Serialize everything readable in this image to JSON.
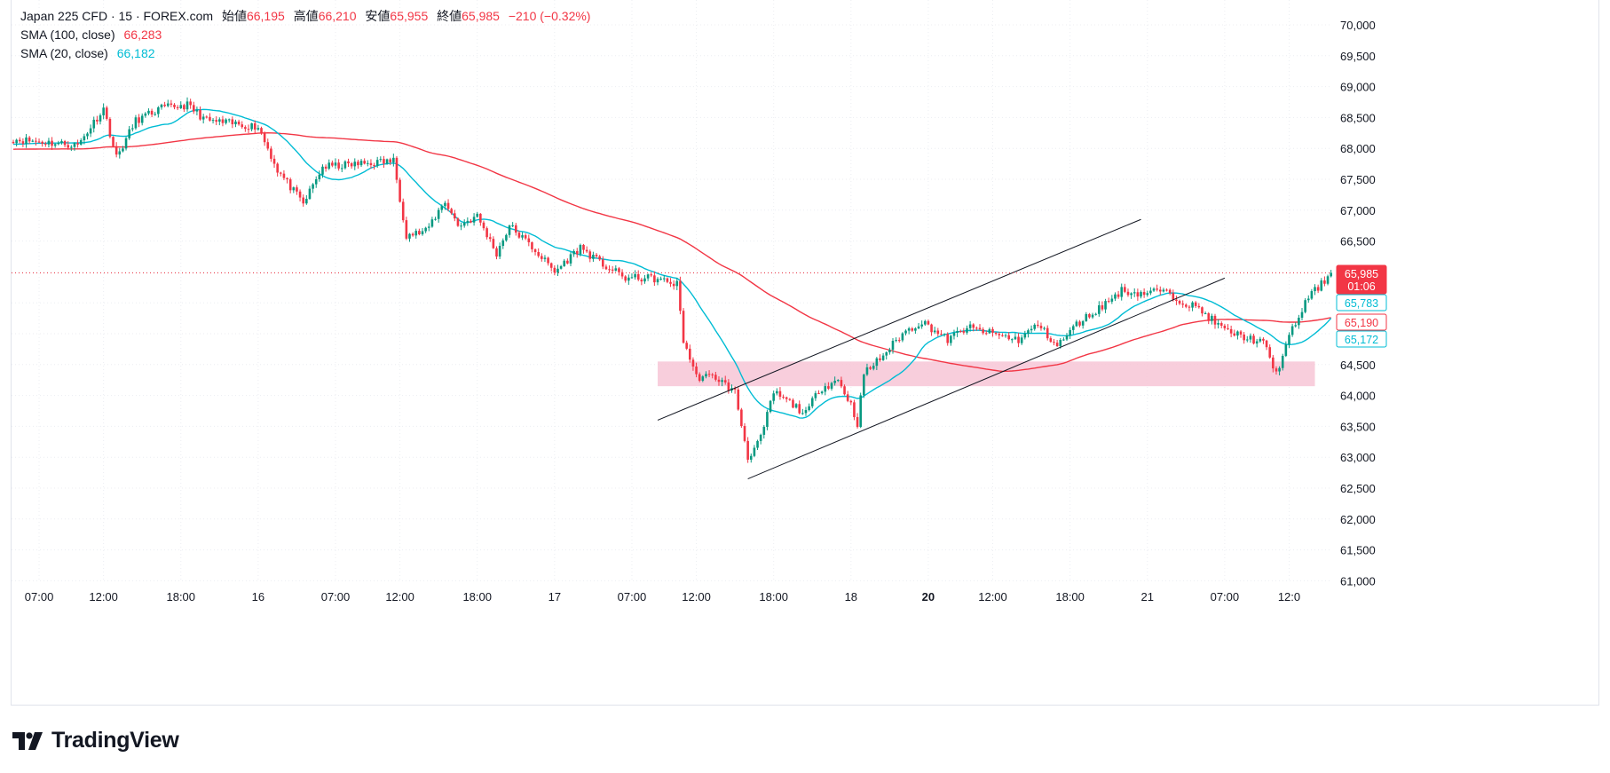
{
  "legend": {
    "symbol": "Japan 225 CFD · 15 · FOREX.com",
    "open_label": "始値",
    "open": "66,195",
    "high_label": "高値",
    "high": "66,210",
    "low_label": "安値",
    "low": "65,955",
    "close_label": "終値",
    "close": "65,985",
    "change": "−210 (−0.32%)",
    "sma100_label": "SMA (100, close)",
    "sma100_value": "66,283",
    "sma20_label": "SMA (20, close)",
    "sma20_value": "66,182"
  },
  "price_tags": {
    "last": "65,985",
    "countdown": "01:06",
    "teal_upper": "65,783",
    "red": "65,190",
    "teal_lower": "65,172"
  },
  "brand": {
    "name": "TradingView",
    "icon": "tradingview-logo-icon"
  },
  "colors": {
    "up": "#089981",
    "down": "#f23645",
    "sma100": "#f23645",
    "sma20": "#00bcd4",
    "zone": "#f7c6d6"
  },
  "chart_data": {
    "type": "candlestick",
    "interval": "15",
    "ylim": [
      61000,
      70250
    ],
    "y_ticks": [
      61000,
      61500,
      62000,
      62500,
      63000,
      63500,
      64000,
      64500,
      65000,
      65500,
      66000,
      66500,
      67000,
      67500,
      68000,
      68500,
      69000,
      69500,
      70000
    ],
    "y_tick_labels": [
      "61,000",
      "61,500",
      "62,000",
      "62,500",
      "63,000",
      "63,500",
      "64,000",
      "64,500",
      "65,000",
      "65,500",
      "66,000",
      "66,500",
      "67,000",
      "67,500",
      "68,000",
      "68,500",
      "69,000",
      "69,500",
      "70,000"
    ],
    "x_ticks": [
      {
        "i": 8,
        "label": "07:00",
        "bold": false
      },
      {
        "i": 28,
        "label": "12:00",
        "bold": false
      },
      {
        "i": 52,
        "label": "18:00",
        "bold": false
      },
      {
        "i": 76,
        "label": "16",
        "bold": false
      },
      {
        "i": 100,
        "label": "07:00",
        "bold": false
      },
      {
        "i": 120,
        "label": "12:00",
        "bold": false
      },
      {
        "i": 144,
        "label": "18:00",
        "bold": false
      },
      {
        "i": 168,
        "label": "17",
        "bold": false
      },
      {
        "i": 192,
        "label": "07:00",
        "bold": false
      },
      {
        "i": 212,
        "label": "12:00",
        "bold": false
      },
      {
        "i": 236,
        "label": "18:00",
        "bold": false
      },
      {
        "i": 260,
        "label": "18",
        "bold": false
      },
      {
        "i": 284,
        "label": "20",
        "bold": true
      },
      {
        "i": 304,
        "label": "12:00",
        "bold": false
      },
      {
        "i": 328,
        "label": "18:00",
        "bold": false
      },
      {
        "i": 352,
        "label": "21",
        "bold": false
      },
      {
        "i": 376,
        "label": "07:00",
        "bold": false
      },
      {
        "i": 396,
        "label": "12:0",
        "bold": false
      }
    ],
    "bar_count": 410,
    "closes_anchor": [
      [
        0,
        68150
      ],
      [
        20,
        68050
      ],
      [
        28,
        68650
      ],
      [
        32,
        67850
      ],
      [
        38,
        68450
      ],
      [
        46,
        68650
      ],
      [
        54,
        68700
      ],
      [
        60,
        68450
      ],
      [
        76,
        68350
      ],
      [
        82,
        67650
      ],
      [
        90,
        67100
      ],
      [
        96,
        67700
      ],
      [
        108,
        67750
      ],
      [
        118,
        67800
      ],
      [
        122,
        66600
      ],
      [
        128,
        66650
      ],
      [
        134,
        67150
      ],
      [
        138,
        66750
      ],
      [
        144,
        66900
      ],
      [
        150,
        66300
      ],
      [
        154,
        66750
      ],
      [
        162,
        66350
      ],
      [
        168,
        66000
      ],
      [
        176,
        66400
      ],
      [
        182,
        66150
      ],
      [
        190,
        65900
      ],
      [
        198,
        65900
      ],
      [
        206,
        65800
      ],
      [
        208,
        64900
      ],
      [
        212,
        64300
      ],
      [
        218,
        64300
      ],
      [
        224,
        64050
      ],
      [
        228,
        63000
      ],
      [
        232,
        63300
      ],
      [
        236,
        64050
      ],
      [
        242,
        63850
      ],
      [
        246,
        63700
      ],
      [
        250,
        64100
      ],
      [
        256,
        64250
      ],
      [
        260,
        63850
      ],
      [
        262,
        63550
      ],
      [
        264,
        64350
      ],
      [
        270,
        64650
      ],
      [
        276,
        65000
      ],
      [
        282,
        65200
      ],
      [
        290,
        64900
      ],
      [
        296,
        65100
      ],
      [
        304,
        65000
      ],
      [
        312,
        64900
      ],
      [
        318,
        65150
      ],
      [
        324,
        64800
      ],
      [
        330,
        65150
      ],
      [
        338,
        65450
      ],
      [
        344,
        65700
      ],
      [
        350,
        65650
      ],
      [
        356,
        65700
      ],
      [
        362,
        65550
      ],
      [
        368,
        65400
      ],
      [
        376,
        65050
      ],
      [
        382,
        64950
      ],
      [
        388,
        64850
      ],
      [
        392,
        64350
      ],
      [
        396,
        64950
      ],
      [
        402,
        65600
      ],
      [
        406,
        65800
      ],
      [
        409,
        65985
      ]
    ],
    "series": [
      {
        "name": "SMA (100, close)",
        "color": "#f23645",
        "period": 100
      },
      {
        "name": "SMA (20, close)",
        "color": "#00bcd4",
        "period": 20
      }
    ],
    "trendlines": [
      {
        "from": [
          200,
          63600
        ],
        "to": [
          350,
          66850
        ]
      },
      {
        "from": [
          228,
          62650
        ],
        "to": [
          376,
          65900
        ]
      }
    ],
    "zone": {
      "from_i": 200,
      "to_i": 404,
      "y_low": 64150,
      "y_high": 64550
    },
    "last_price_line": 65985
  }
}
